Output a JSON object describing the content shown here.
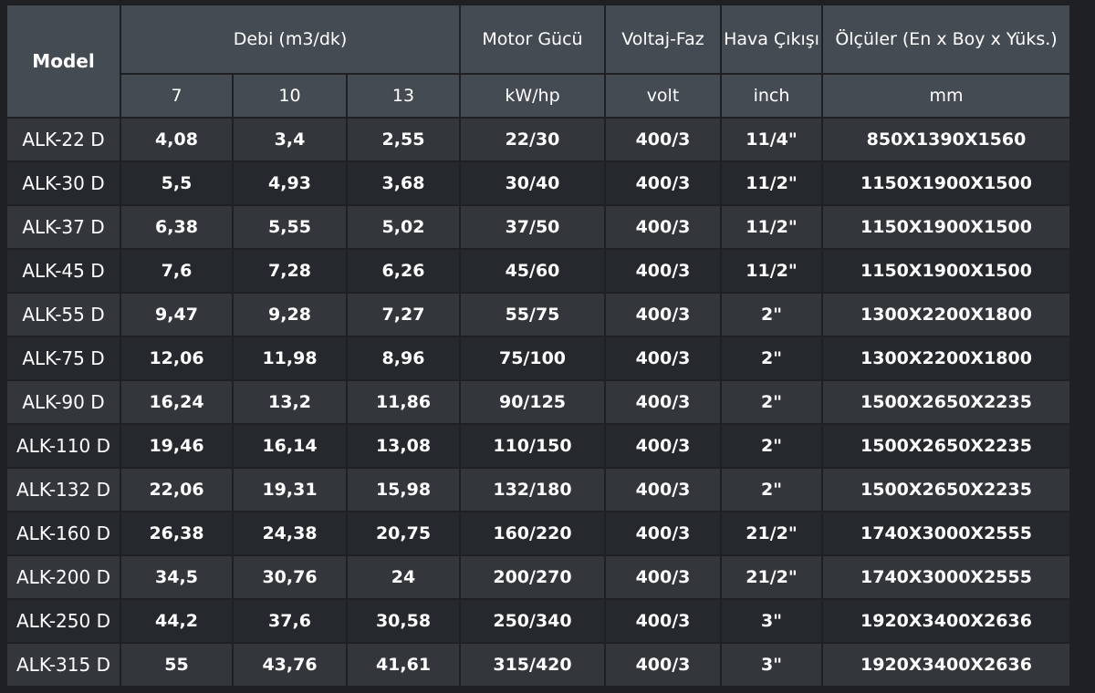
{
  "table": {
    "headers": {
      "model": "Model",
      "flow": "Debi (m3/dk)",
      "motor": "Motor Gücü",
      "voltage": "Voltaj-Faz",
      "air_outlet": "Hava Çıkışı",
      "dimensions": "Ölçüler (En x Boy x Yüks.)"
    },
    "subheaders": {
      "flow_7": "7",
      "flow_10": "10",
      "flow_13": "13",
      "motor_unit": "kW/hp",
      "voltage_unit": "volt",
      "air_unit": "inch",
      "dim_unit": "mm"
    },
    "rows": [
      [
        "ALK-22 D",
        "4,08",
        "3,4",
        "2,55",
        "22/30",
        "400/3",
        "11/4\"",
        "850X1390X1560"
      ],
      [
        "ALK-30 D",
        "5,5",
        "4,93",
        "3,68",
        "30/40",
        "400/3",
        "11/2\"",
        "1150X1900X1500"
      ],
      [
        "ALK-37 D",
        "6,38",
        "5,55",
        "5,02",
        "37/50",
        "400/3",
        "11/2\"",
        "1150X1900X1500"
      ],
      [
        "ALK-45 D",
        "7,6",
        "7,28",
        "6,26",
        "45/60",
        "400/3",
        "11/2\"",
        "1150X1900X1500"
      ],
      [
        "ALK-55 D",
        "9,47",
        "9,28",
        "7,27",
        "55/75",
        "400/3",
        "2\"",
        "1300X2200X1800"
      ],
      [
        "ALK-75 D",
        "12,06",
        "11,98",
        "8,96",
        "75/100",
        "400/3",
        "2\"",
        "1300X2200X1800"
      ],
      [
        "ALK-90 D",
        "16,24",
        "13,2",
        "11,86",
        "90/125",
        "400/3",
        "2\"",
        "1500X2650X2235"
      ],
      [
        "ALK-110 D",
        "19,46",
        "16,14",
        "13,08",
        "110/150",
        "400/3",
        "2\"",
        "1500X2650X2235"
      ],
      [
        "ALK-132 D",
        "22,06",
        "19,31",
        "15,98",
        "132/180",
        "400/3",
        "2\"",
        "1500X2650X2235"
      ],
      [
        "ALK-160 D",
        "26,38",
        "24,38",
        "20,75",
        "160/220",
        "400/3",
        "21/2\"",
        "1740X3000X2555"
      ],
      [
        "ALK-200 D",
        "34,5",
        "30,76",
        "24",
        "200/270",
        "400/3",
        "21/2\"",
        "1740X3000X2555"
      ],
      [
        "ALK-250 D",
        "44,2",
        "37,6",
        "30,58",
        "250/340",
        "400/3",
        "3\"",
        "1920X3400X2636"
      ],
      [
        "ALK-315 D",
        "55",
        "43,76",
        "41,61",
        "315/420",
        "400/3",
        "3\"",
        "1920X3400X2636"
      ]
    ]
  },
  "colors": {
    "header_bg": "#454b52",
    "row_light": "#33373c",
    "row_dark": "#25282c",
    "background": "#1e2023",
    "text": "#ffffff"
  }
}
